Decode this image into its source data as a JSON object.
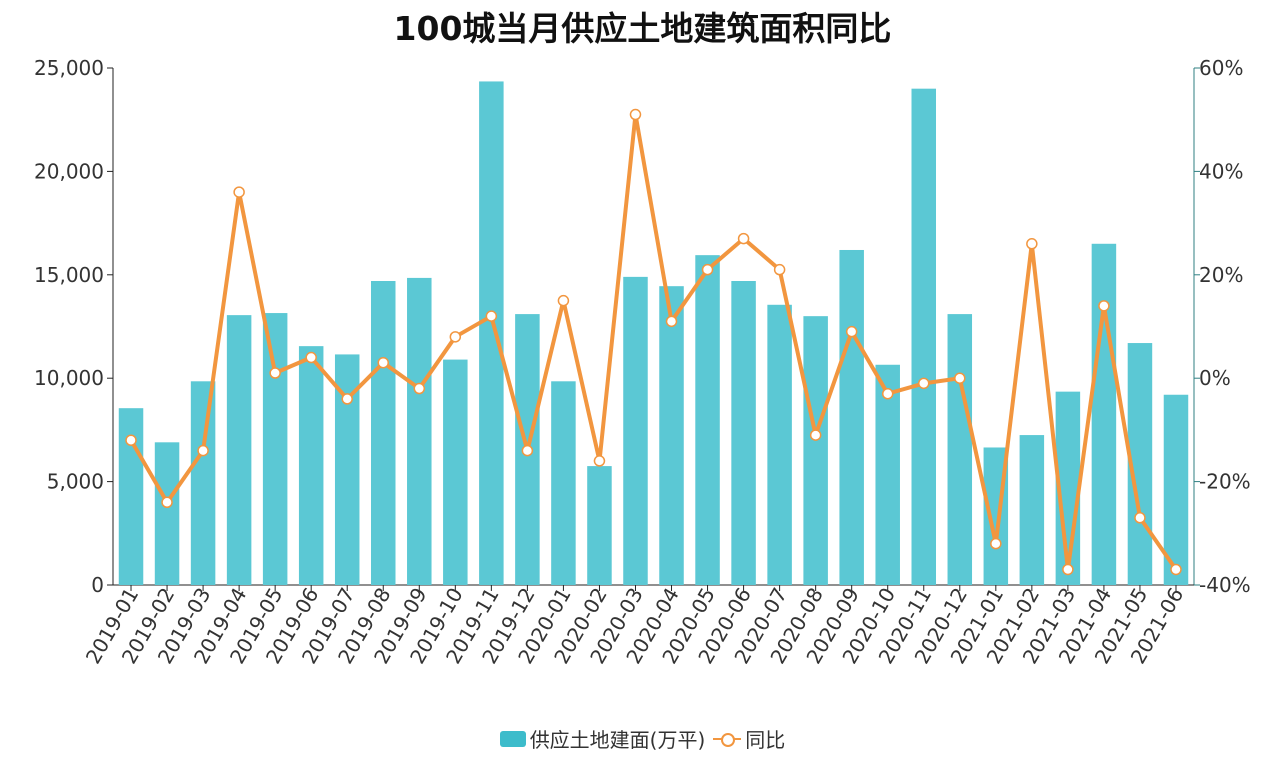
{
  "chart_data": {
    "type": "bar",
    "title": "100城当月供应土地建筑面积同比",
    "categories": [
      "2019-01",
      "2019-02",
      "2019-03",
      "2019-04",
      "2019-05",
      "2019-06",
      "2019-07",
      "2019-08",
      "2019-09",
      "2019-10",
      "2019-11",
      "2019-12",
      "2020-01",
      "2020-02",
      "2020-03",
      "2020-04",
      "2020-05",
      "2020-06",
      "2020-07",
      "2020-08",
      "2020-09",
      "2020-10",
      "2020-11",
      "2020-12",
      "2021-01",
      "2021-02",
      "2021-03",
      "2021-04",
      "2021-05",
      "2021-06"
    ],
    "series": [
      {
        "name": "供应土地建面(万平)",
        "type": "bar",
        "axis": "left",
        "color": "#5bc8d4",
        "values": [
          8550,
          6900,
          9850,
          13050,
          13150,
          11550,
          11150,
          14700,
          14850,
          10900,
          24350,
          13100,
          9850,
          5750,
          14900,
          14450,
          15950,
          14700,
          13550,
          13000,
          16200,
          10650,
          24000,
          13100,
          6650,
          7250,
          9350,
          16500,
          11700,
          9200
        ]
      },
      {
        "name": "同比",
        "type": "line",
        "axis": "right",
        "color": "#f2963f",
        "values": [
          -12,
          -24,
          -14,
          36,
          1,
          4,
          -4,
          3,
          -2,
          8,
          12,
          -14,
          15,
          -16,
          51,
          11,
          21,
          27,
          21,
          -11,
          9,
          -3,
          -1,
          0,
          -32,
          26,
          -37,
          14,
          -27,
          -37
        ]
      }
    ],
    "yleft": {
      "ylim": [
        0,
        25000
      ],
      "ticks": [
        "0",
        "5,000",
        "10,000",
        "15,000",
        "20,000",
        "25,000"
      ]
    },
    "yright": {
      "ylim": [
        -40,
        60
      ],
      "ticks": [
        "-40%",
        "-20%",
        "0%",
        "20%",
        "40%",
        "60%"
      ]
    },
    "legend": {
      "placement": "bottom-center"
    },
    "grid": false
  },
  "colors": {
    "bar": "#5bc8d4",
    "bar_legend": "#3dbccb",
    "line": "#f2963f",
    "axis_left": "#222222",
    "axis_right": "#2f7f82"
  }
}
